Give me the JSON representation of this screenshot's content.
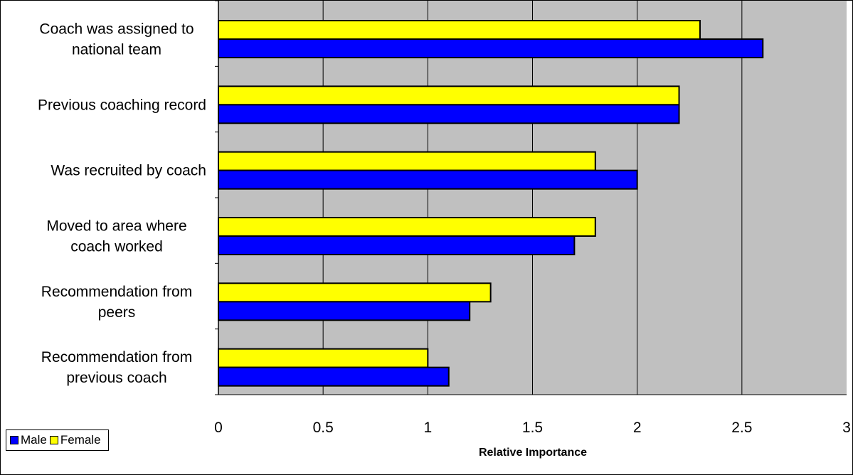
{
  "chart_data": {
    "type": "bar",
    "orientation": "horizontal",
    "categories": [
      [
        "Coach was assigned to",
        "national team"
      ],
      [
        "Previous coaching record"
      ],
      [
        "Was recruited by coach"
      ],
      [
        "Moved to area where",
        "coach worked"
      ],
      [
        "Recommendation from",
        "peers"
      ],
      [
        "Recommendation from",
        "previous coach"
      ]
    ],
    "series": [
      {
        "name": "Female",
        "color": "#ffff00",
        "values": [
          2.3,
          2.2,
          1.8,
          1.8,
          1.3,
          1.0
        ]
      },
      {
        "name": "Male",
        "color": "#0000ff",
        "values": [
          2.6,
          2.2,
          2.0,
          1.7,
          1.2,
          1.1
        ]
      }
    ],
    "xlabel": "Relative Importance",
    "ylabel": "",
    "title": "",
    "xlim": [
      0,
      3
    ],
    "xticks": [
      "0",
      "0.5",
      "1",
      "1.5",
      "2",
      "2.5",
      "3"
    ],
    "grid": "vertical",
    "plot_background": "#c0c0c0",
    "legend": {
      "placement": "bottom-left",
      "entries": [
        {
          "label": "Male",
          "color": "#0000ff"
        },
        {
          "label": "Female",
          "color": "#ffff00"
        }
      ]
    }
  }
}
